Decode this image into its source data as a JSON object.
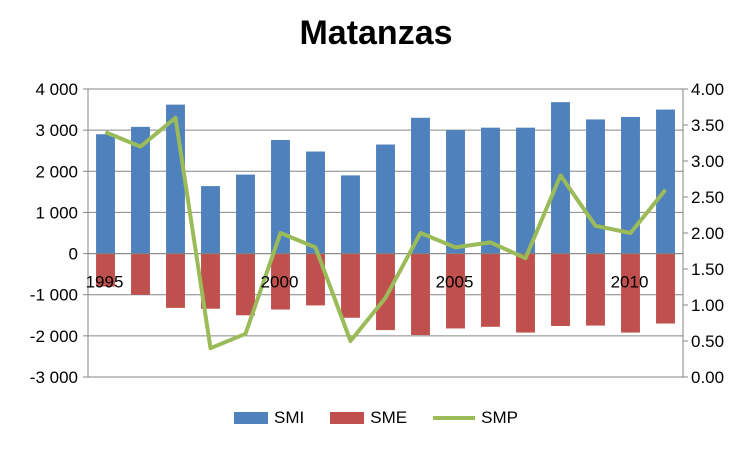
{
  "chart_data": {
    "type": "bar",
    "title": "Matanzas",
    "x": [
      1995,
      1996,
      1997,
      1998,
      1999,
      2000,
      2001,
      2002,
      2003,
      2004,
      2005,
      2006,
      2007,
      2008,
      2009,
      2010,
      2011
    ],
    "x_tick_labels": [
      "1995",
      "2000",
      "2005",
      "2010"
    ],
    "series": [
      {
        "name": "SMI",
        "kind": "bar",
        "axis": "left",
        "color": "#4F81BD",
        "values": [
          2900,
          3080,
          3620,
          1640,
          1920,
          2760,
          2480,
          1900,
          2650,
          3300,
          3000,
          3060,
          3060,
          3680,
          3260,
          3320,
          3500
        ]
      },
      {
        "name": "SME",
        "kind": "bar",
        "axis": "left",
        "color": "#C0504D",
        "values": [
          -800,
          -1000,
          -1320,
          -1340,
          -1500,
          -1360,
          -1260,
          -1560,
          -1860,
          -1980,
          -1820,
          -1780,
          -1920,
          -1760,
          -1750,
          -1920,
          -1700
        ]
      },
      {
        "name": "SMP",
        "kind": "line",
        "axis": "right",
        "color": "#9BBB59",
        "values": [
          3.4,
          3.2,
          3.6,
          0.4,
          0.6,
          2.0,
          1.8,
          0.5,
          1.1,
          2.0,
          1.8,
          1.87,
          1.65,
          2.8,
          2.1,
          2.0,
          2.6
        ]
      }
    ],
    "y_left": {
      "min": -3000,
      "max": 4000,
      "step": 1000,
      "tick_labels": [
        "-3 000",
        "-2 000",
        "-1 000",
        "0",
        "1 000",
        "2 000",
        "3 000",
        "4 000"
      ]
    },
    "y_right": {
      "min": 0,
      "max": 4,
      "step": 0.5,
      "tick_labels": [
        "0.00",
        "0.50",
        "1.00",
        "1.50",
        "2.00",
        "2.50",
        "3.00",
        "3.50",
        "4.00"
      ]
    },
    "grid": true,
    "legend_position": "bottom"
  }
}
